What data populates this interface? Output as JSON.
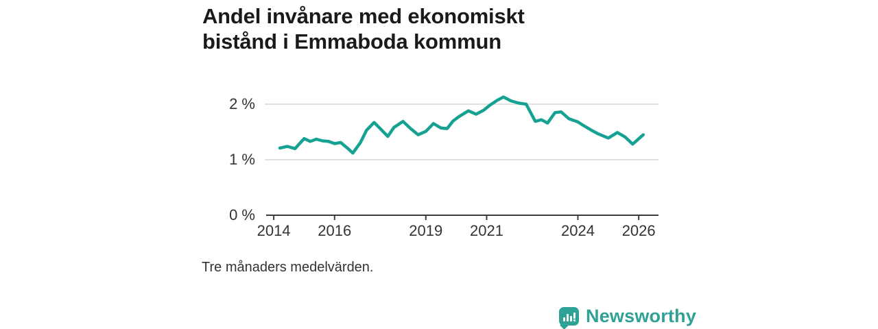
{
  "title": {
    "line1": "Andel invånare med ekonomiskt",
    "line2": "bistånd i Emmaboda kommun"
  },
  "footnote": "Tre månaders medelvärden.",
  "branding": {
    "name": "Newsworthy",
    "logo_icon": "bar-chart-speech-bubble"
  },
  "colors": {
    "line": "#16a293",
    "grid": "#d9d9d9",
    "axis": "#3c3c3c",
    "title_text": "#1a1a1a",
    "label_text": "#333333",
    "brand": "#2fa195"
  },
  "chart_data": {
    "type": "line",
    "title": "Andel invånare med ekonomiskt bistånd i Emmaboda kommun",
    "subtitle": "Tre månaders medelvärden.",
    "unit": "%",
    "xlabel": "",
    "ylabel": "",
    "grid": "horizontal-only",
    "legend": "none",
    "x_range": [
      2013.75,
      2026.65
    ],
    "y_range": [
      0,
      2.35
    ],
    "x_ticks": [
      {
        "value": 2014,
        "label": "2014"
      },
      {
        "value": 2016,
        "label": "2016"
      },
      {
        "value": 2019,
        "label": "2019"
      },
      {
        "value": 2021,
        "label": "2021"
      },
      {
        "value": 2024,
        "label": "2024"
      },
      {
        "value": 2026,
        "label": "2026"
      }
    ],
    "y_ticks": [
      {
        "value": 0,
        "label": "0 %"
      },
      {
        "value": 1,
        "label": "1 %"
      },
      {
        "value": 2,
        "label": "2 %"
      }
    ],
    "series": [
      {
        "name": "Andel invånare med ekonomiskt bistånd",
        "points": [
          [
            2014.2,
            1.21
          ],
          [
            2014.45,
            1.24
          ],
          [
            2014.7,
            1.2
          ],
          [
            2015.0,
            1.38
          ],
          [
            2015.2,
            1.33
          ],
          [
            2015.4,
            1.37
          ],
          [
            2015.6,
            1.34
          ],
          [
            2015.8,
            1.33
          ],
          [
            2016.0,
            1.29
          ],
          [
            2016.2,
            1.31
          ],
          [
            2016.4,
            1.22
          ],
          [
            2016.6,
            1.12
          ],
          [
            2016.85,
            1.31
          ],
          [
            2017.05,
            1.53
          ],
          [
            2017.3,
            1.67
          ],
          [
            2017.5,
            1.56
          ],
          [
            2017.75,
            1.42
          ],
          [
            2017.95,
            1.58
          ],
          [
            2018.25,
            1.69
          ],
          [
            2018.5,
            1.56
          ],
          [
            2018.75,
            1.45
          ],
          [
            2019.0,
            1.51
          ],
          [
            2019.25,
            1.65
          ],
          [
            2019.5,
            1.57
          ],
          [
            2019.7,
            1.56
          ],
          [
            2019.9,
            1.7
          ],
          [
            2020.1,
            1.78
          ],
          [
            2020.4,
            1.88
          ],
          [
            2020.65,
            1.82
          ],
          [
            2020.9,
            1.89
          ],
          [
            2021.1,
            1.98
          ],
          [
            2021.35,
            2.07
          ],
          [
            2021.55,
            2.13
          ],
          [
            2021.8,
            2.06
          ],
          [
            2022.05,
            2.02
          ],
          [
            2022.3,
            2.0
          ],
          [
            2022.6,
            1.69
          ],
          [
            2022.8,
            1.72
          ],
          [
            2023.0,
            1.66
          ],
          [
            2023.25,
            1.85
          ],
          [
            2023.45,
            1.86
          ],
          [
            2023.7,
            1.74
          ],
          [
            2024.0,
            1.68
          ],
          [
            2024.2,
            1.61
          ],
          [
            2024.45,
            1.53
          ],
          [
            2024.65,
            1.47
          ],
          [
            2025.0,
            1.39
          ],
          [
            2025.3,
            1.49
          ],
          [
            2025.55,
            1.41
          ],
          [
            2025.8,
            1.28
          ],
          [
            2026.15,
            1.45
          ]
        ]
      }
    ]
  }
}
